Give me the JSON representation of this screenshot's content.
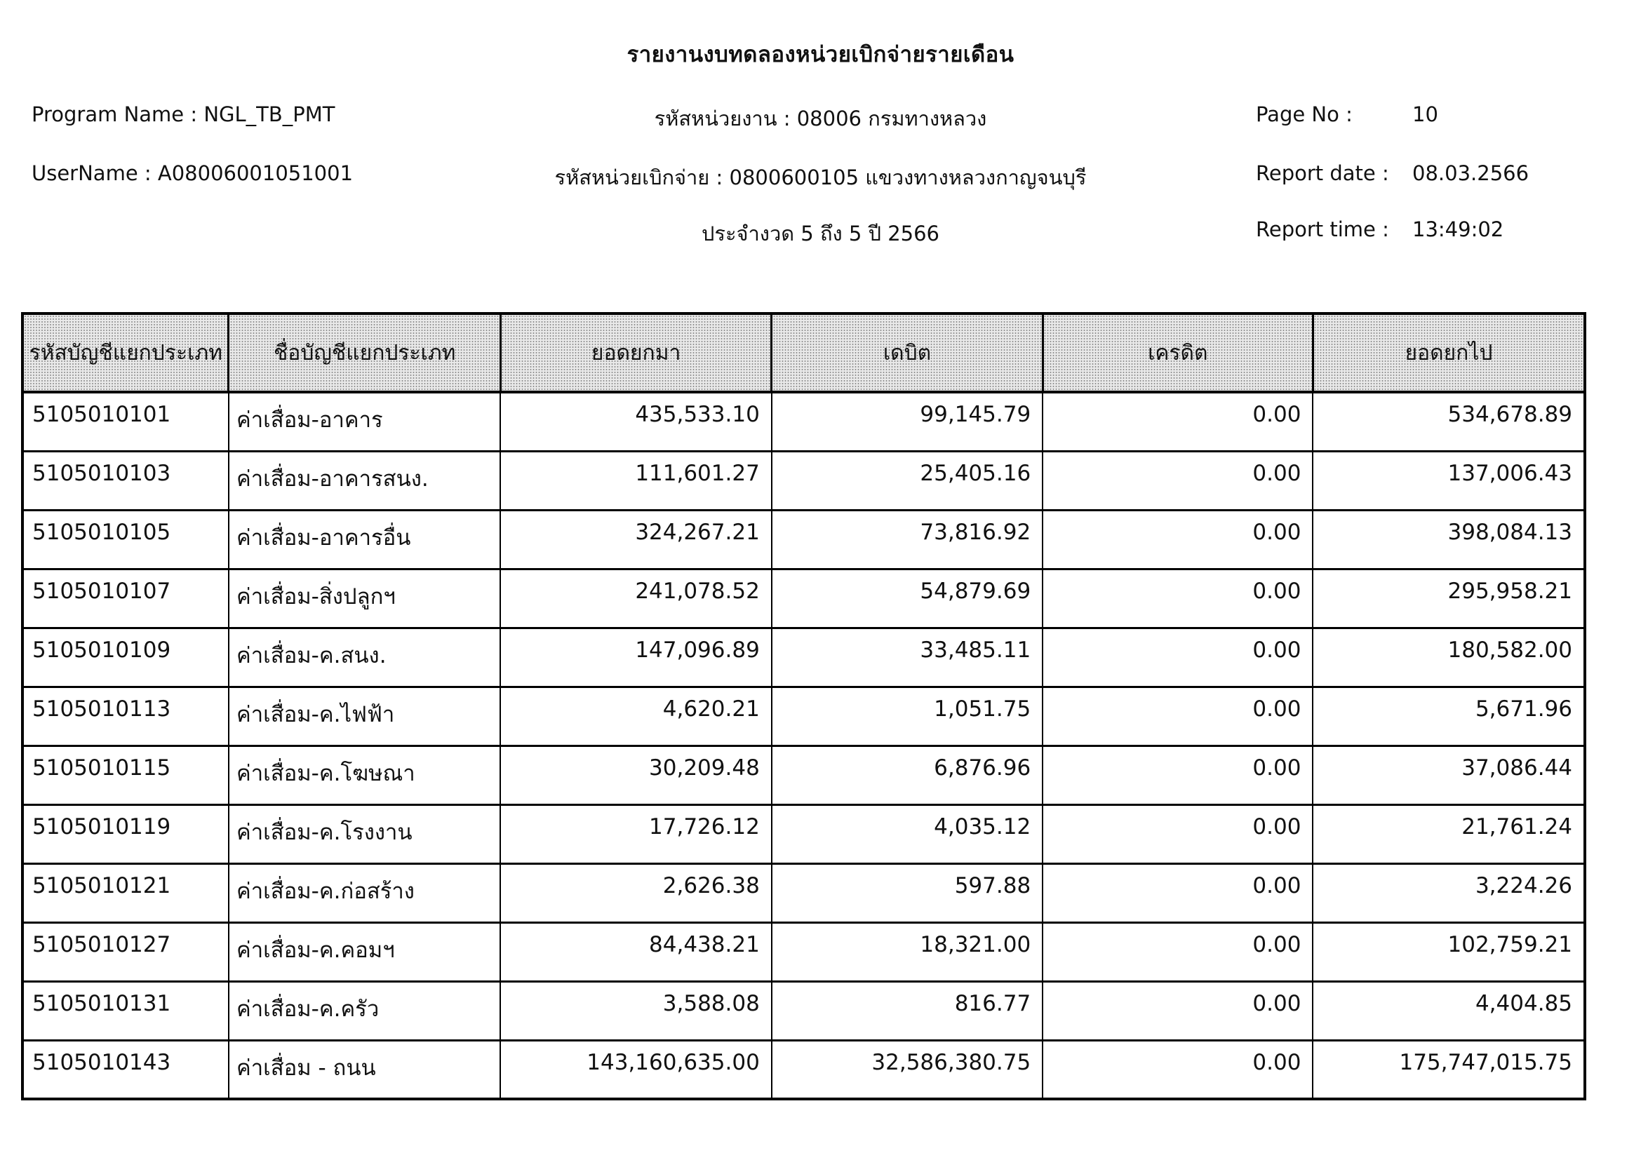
{
  "report": {
    "title": "รายงานงบทดลองหน่วยเบิกจ่ายรายเดือน",
    "program_name_label": "Program Name :",
    "program_name": "NGL_TB_PMT",
    "username_label": "UserName :",
    "username": "A08006001051001",
    "agency_line": "รหัสหน่วยงาน : 08006 กรมทางหลวง",
    "disbursement_line": "รหัสหน่วยเบิกจ่าย : 0800600105 แขวงทางหลวงกาญจนบุรี",
    "period_line": "ประจำงวด 5 ถึง 5 ปี 2566",
    "page_no_label": "Page No :",
    "page_no": "10",
    "report_date_label": "Report date :",
    "report_date": "08.03.2566",
    "report_time_label": "Report time :",
    "report_time": "13:49:02"
  },
  "table": {
    "columns": [
      "รหัสบัญชีแยกประเภท",
      "ชื่อบัญชีแยกประเภท",
      "ยอดยกมา",
      "เดบิต",
      "เครดิต",
      "ยอดยกไป"
    ],
    "rows": [
      [
        "5105010101",
        "ค่าเสื่อม-อาคาร",
        "435,533.10",
        "99,145.79",
        "0.00",
        "534,678.89"
      ],
      [
        "5105010103",
        "ค่าเสื่อม-อาคารสนง.",
        "111,601.27",
        "25,405.16",
        "0.00",
        "137,006.43"
      ],
      [
        "5105010105",
        "ค่าเสื่อม-อาคารอื่น",
        "324,267.21",
        "73,816.92",
        "0.00",
        "398,084.13"
      ],
      [
        "5105010107",
        "ค่าเสื่อม-สิ่งปลูกฯ",
        "241,078.52",
        "54,879.69",
        "0.00",
        "295,958.21"
      ],
      [
        "5105010109",
        "ค่าเสื่อม-ค.สนง.",
        "147,096.89",
        "33,485.11",
        "0.00",
        "180,582.00"
      ],
      [
        "5105010113",
        "ค่าเสื่อม-ค.ไฟฟ้า",
        "4,620.21",
        "1,051.75",
        "0.00",
        "5,671.96"
      ],
      [
        "5105010115",
        "ค่าเสื่อม-ค.โฆษณา",
        "30,209.48",
        "6,876.96",
        "0.00",
        "37,086.44"
      ],
      [
        "5105010119",
        "ค่าเสื่อม-ค.โรงงาน",
        "17,726.12",
        "4,035.12",
        "0.00",
        "21,761.24"
      ],
      [
        "5105010121",
        "ค่าเสื่อม-ค.ก่อสร้าง",
        "2,626.38",
        "597.88",
        "0.00",
        "3,224.26"
      ],
      [
        "5105010127",
        "ค่าเสื่อม-ค.คอมฯ",
        "84,438.21",
        "18,321.00",
        "0.00",
        "102,759.21"
      ],
      [
        "5105010131",
        "ค่าเสื่อม-ค.ครัว",
        "3,588.08",
        "816.77",
        "0.00",
        "4,404.85"
      ],
      [
        "5105010143",
        "ค่าเสื่อม - ถนน",
        "143,160,635.00",
        "32,586,380.75",
        "0.00",
        "175,747,015.75"
      ]
    ]
  }
}
